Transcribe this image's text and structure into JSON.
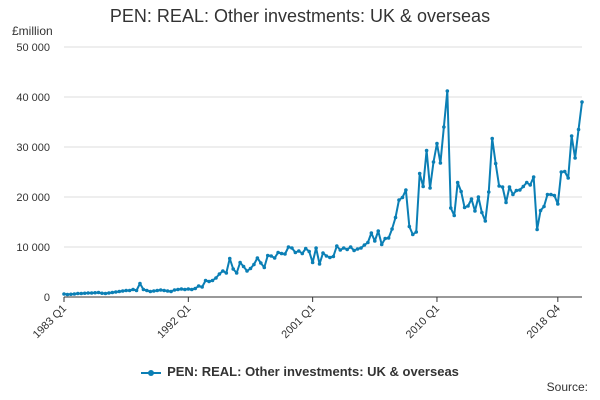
{
  "chart_data": {
    "type": "line",
    "title": "PEN: REAL: Other investments: UK & overseas",
    "ylabel": "£million",
    "ylim": [
      0,
      50000
    ],
    "yticks": [
      0,
      10000,
      20000,
      30000,
      40000,
      50000
    ],
    "ytick_labels": [
      "0",
      "10 000",
      "20 000",
      "30 000",
      "40 000",
      "50 000"
    ],
    "xtick_labels": [
      "1983 Q1",
      "1992 Q1",
      "2001 Q1",
      "2010 Q1",
      "2018 Q4"
    ],
    "x_start": "1983 Q1",
    "x_end": "2018 Q4",
    "grid": true,
    "legend_position": "bottom",
    "series": [
      {
        "name": "PEN: REAL: Other investments: UK & overseas",
        "color": "#0b7fb5",
        "values": [
          600,
          500,
          550,
          600,
          700,
          700,
          750,
          800,
          800,
          850,
          900,
          750,
          700,
          800,
          900,
          1000,
          1100,
          1200,
          1300,
          1300,
          1500,
          1300,
          2700,
          1500,
          1300,
          1100,
          1200,
          1300,
          1400,
          1300,
          1200,
          1100,
          1400,
          1500,
          1600,
          1500,
          1600,
          1500,
          1700,
          2200,
          2000,
          3300,
          3100,
          3300,
          3800,
          4600,
          5200,
          4800,
          7700,
          5600,
          4800,
          6900,
          6100,
          5200,
          5700,
          6500,
          7800,
          6800,
          5900,
          8300,
          8200,
          7800,
          8900,
          8700,
          8600,
          10000,
          9800,
          8900,
          9200,
          8700,
          9700,
          9100,
          6900,
          9800,
          6600,
          8800,
          8200,
          7900,
          8100,
          10200,
          9400,
          9800,
          9500,
          10000,
          9300,
          9600,
          9800,
          10400,
          10900,
          12800,
          11200,
          13200,
          10500,
          11700,
          11800,
          13600,
          15900,
          19400,
          19900,
          21400,
          14100,
          12500,
          13000,
          24700,
          22100,
          29300,
          21800,
          27000,
          30700,
          26800,
          34000,
          41200,
          17800,
          16300,
          22900,
          21100,
          17900,
          18200,
          19600,
          17200,
          20000,
          16900,
          15200,
          21000,
          31700,
          26700,
          22200,
          22000,
          18900,
          22000,
          20500,
          21300,
          21400,
          22100,
          22900,
          22400,
          24000,
          13500,
          17300,
          18100,
          20500,
          20500,
          20300,
          18600,
          25000,
          25100,
          23800,
          32200,
          27800,
          33500,
          39000
        ]
      }
    ]
  },
  "source_label": "Source:"
}
